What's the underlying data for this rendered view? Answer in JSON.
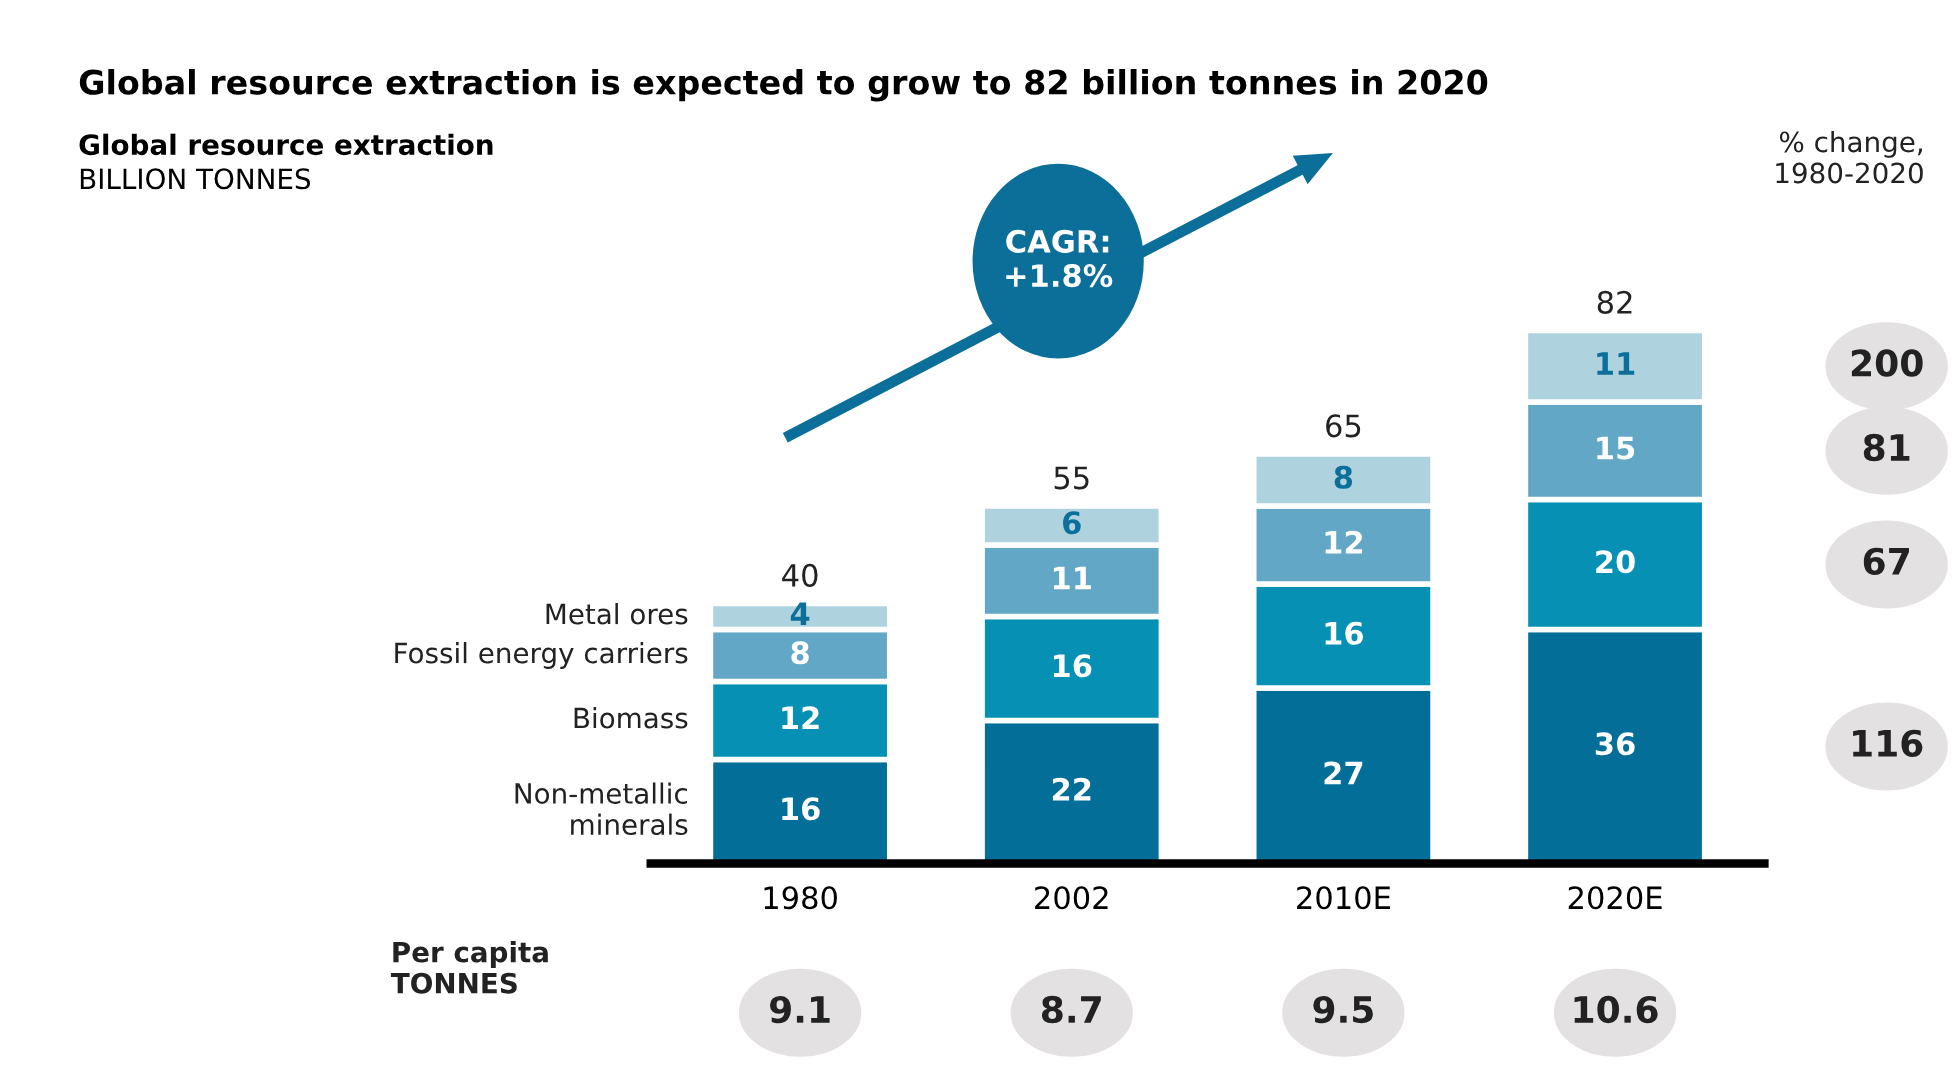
{
  "chart_data": {
    "type": "bar",
    "stacked": true,
    "title": "Global resource extraction is expected to grow to 82 billion tonnes in 2020",
    "subtitle": "Global resource extraction",
    "categories": [
      "1980",
      "2002",
      "2010E",
      "2020E"
    ],
    "series": [
      {
        "name": "Non-metallic\nminerals",
        "color": "#036f99",
        "values": [
          16,
          22,
          27,
          36
        ]
      },
      {
        "name": "Biomass",
        "color": "#0590b4",
        "values": [
          12,
          16,
          16,
          20
        ]
      },
      {
        "name": "Fossil energy carriers",
        "color": "#62a8c6",
        "values": [
          8,
          11,
          12,
          15
        ]
      },
      {
        "name": "Metal ores",
        "color": "#aed3df",
        "values": [
          4,
          6,
          8,
          11
        ]
      }
    ],
    "data_labels": true,
    "totals": [
      "40",
      "55",
      "65",
      "82"
    ],
    "legend": false,
    "grid": false,
    "annotations": [
      "CAGR:\n+1.8%",
      "% change,\n1980-2020",
      "200",
      "81",
      "67",
      "116",
      "Per capita\nTONNES",
      "9.1",
      "8.7",
      "9.5",
      "10.6",
      "BILLION TONNES"
    ]
  }
}
